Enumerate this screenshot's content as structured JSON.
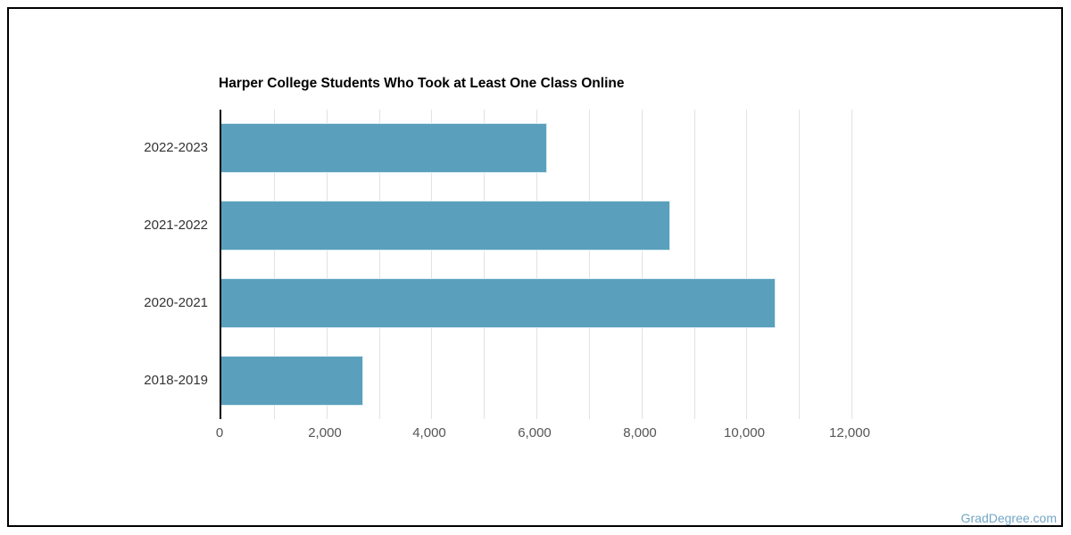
{
  "page": {
    "background": "#ffffff",
    "border_color": "#000000"
  },
  "watermark": {
    "text": "GradDegree.com",
    "color": "#74a7c6"
  },
  "chart_data": {
    "type": "bar",
    "orientation": "horizontal",
    "title": "Harper College Students Who Took at Least One Class Online",
    "categories": [
      "2022-2023",
      "2021-2022",
      "2020-2021",
      "2018-2019"
    ],
    "values": [
      6200,
      8550,
      10550,
      2700
    ],
    "xlabel": "",
    "ylabel": "",
    "xlim": [
      0,
      12000
    ],
    "x_ticks_labeled": [
      0,
      2000,
      4000,
      6000,
      8000,
      10000,
      12000
    ],
    "x_tick_labels": [
      "0",
      "2,000",
      "4,000",
      "6,000",
      "8,000",
      "10,000",
      "12,000"
    ],
    "gridline_step": 1000,
    "grid": "vertical gridlines every 1,000; no horizontal gridlines",
    "legend": "none",
    "bar_color": "#5aa0bc",
    "gridline_color": "#e2e2e2",
    "axis_line_color": "#000000",
    "title_color": "#000000",
    "category_label_color": "#333333",
    "tick_label_color": "#555555"
  }
}
